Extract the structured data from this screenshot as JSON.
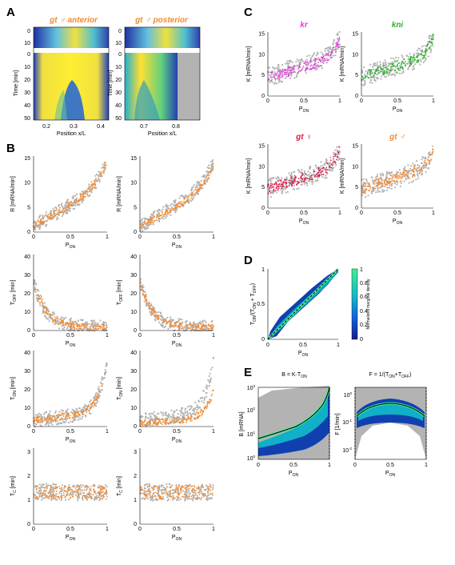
{
  "colors": {
    "orange": "#f28a30",
    "gray": "#b3b3b3",
    "magenta": "#e040d8",
    "green": "#30b030",
    "crimson": "#d81b48",
    "black": "#000000"
  },
  "panels": {
    "A": {
      "letter": "A",
      "titles": [
        "gt ♂ anterior",
        "gt ♂ posterior"
      ],
      "ylabel": "Time [min]",
      "xlabel": "Position x/L",
      "top_yticks": [
        "0",
        "10"
      ],
      "yticks": [
        "0",
        "10",
        "20",
        "30",
        "40",
        "50"
      ],
      "xticks_left": [
        "0.2",
        "0.3",
        "0.4"
      ],
      "xticks_right": [
        "0.7",
        "0.8"
      ]
    },
    "B": {
      "letter": "B",
      "xlabel": "P",
      "xsub": "ON",
      "xticks": [
        "0",
        "0.5",
        "1"
      ],
      "rows": [
        {
          "ylabel": "R [mRNA/min]",
          "yticks": [
            "0",
            "5",
            "10",
            "15"
          ]
        },
        {
          "ylabel": "T",
          "ysub": "OFF",
          "yunit": " [min]",
          "yticks": [
            "0",
            "10",
            "20",
            "30",
            "40"
          ]
        },
        {
          "ylabel": "T",
          "ysub": "ON",
          "yunit": " [min]",
          "yticks": [
            "0",
            "10",
            "20",
            "30",
            "40"
          ]
        },
        {
          "ylabel": "T",
          "ysub": "C",
          "yunit": " [min]",
          "yticks": [
            "0",
            "1",
            "2",
            "3"
          ]
        }
      ]
    },
    "C": {
      "letter": "C",
      "titles": [
        "kr",
        "kni",
        "gt ♀",
        "gt ♂"
      ],
      "ylabel": "K [mRNA/min]",
      "yticks": [
        "0",
        "5",
        "10",
        "15"
      ],
      "xlabel": "P",
      "xsub": "ON",
      "xticks": [
        "0",
        "0.5",
        "1"
      ]
    },
    "D": {
      "letter": "D",
      "ylabel": "T",
      "ylabel_rest": "/(T",
      "ylabel_tail": " + T",
      "ylabel_end": ")",
      "yticks": [
        "0",
        "0.5",
        "1"
      ],
      "xticks": [
        "0",
        "0.5",
        "1"
      ],
      "xlabel": "P",
      "xsub": "ON",
      "cbar_label": "Normalized marginal density",
      "cbar_ticks": [
        "0",
        "0.2",
        "0.4",
        "0.6",
        "0.8",
        "1"
      ]
    },
    "E": {
      "letter": "E",
      "title_left": "B = K·T",
      "title_left_sub": "ON",
      "title_right": "F = 1/(T",
      "title_right_mid": "+T",
      "title_right_end": ")",
      "ylabel_left": "B [mRNA]",
      "ylabel_right": "F [1/min]",
      "yticks_left": [
        "10",
        "10",
        "10",
        "10"
      ],
      "yexp_left": [
        "0",
        "1",
        "2",
        "3"
      ],
      "yticks_right": [
        "10",
        "10",
        "10"
      ],
      "yexp_right": [
        "-2",
        "-1",
        "0"
      ],
      "xticks": [
        "0",
        "0.5",
        "1"
      ],
      "xlabel": "P",
      "xsub": "ON",
      "sub_on": "ON",
      "sub_off": "OFF"
    }
  }
}
